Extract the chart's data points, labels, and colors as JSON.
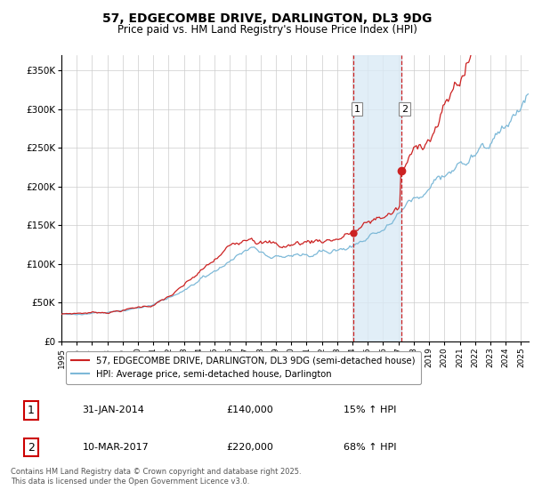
{
  "title": "57, EDGECOMBE DRIVE, DARLINGTON, DL3 9DG",
  "subtitle": "Price paid vs. HM Land Registry's House Price Index (HPI)",
  "ylim": [
    0,
    370000
  ],
  "yticks": [
    0,
    50000,
    100000,
    150000,
    200000,
    250000,
    300000,
    350000
  ],
  "ytick_labels": [
    "£0",
    "£50K",
    "£100K",
    "£150K",
    "£200K",
    "£250K",
    "£300K",
    "£350K"
  ],
  "hpi_color": "#7db9d8",
  "price_color": "#cc2222",
  "event1_x": 2014.08,
  "event2_x": 2017.19,
  "event1_price": 140000,
  "event2_price": 220000,
  "shade_color": "#daeaf5",
  "vline_color": "#cc2222",
  "legend_label_price": "57, EDGECOMBE DRIVE, DARLINGTON, DL3 9DG (semi-detached house)",
  "legend_label_hpi": "HPI: Average price, semi-detached house, Darlington",
  "table_row1": [
    "1",
    "31-JAN-2014",
    "£140,000",
    "15% ↑ HPI"
  ],
  "table_row2": [
    "2",
    "10-MAR-2017",
    "£220,000",
    "68% ↑ HPI"
  ],
  "footnote": "Contains HM Land Registry data © Crown copyright and database right 2025.\nThis data is licensed under the Open Government Licence v3.0.",
  "grid_color": "#cccccc",
  "xmin": 1995,
  "xmax": 2025.5
}
